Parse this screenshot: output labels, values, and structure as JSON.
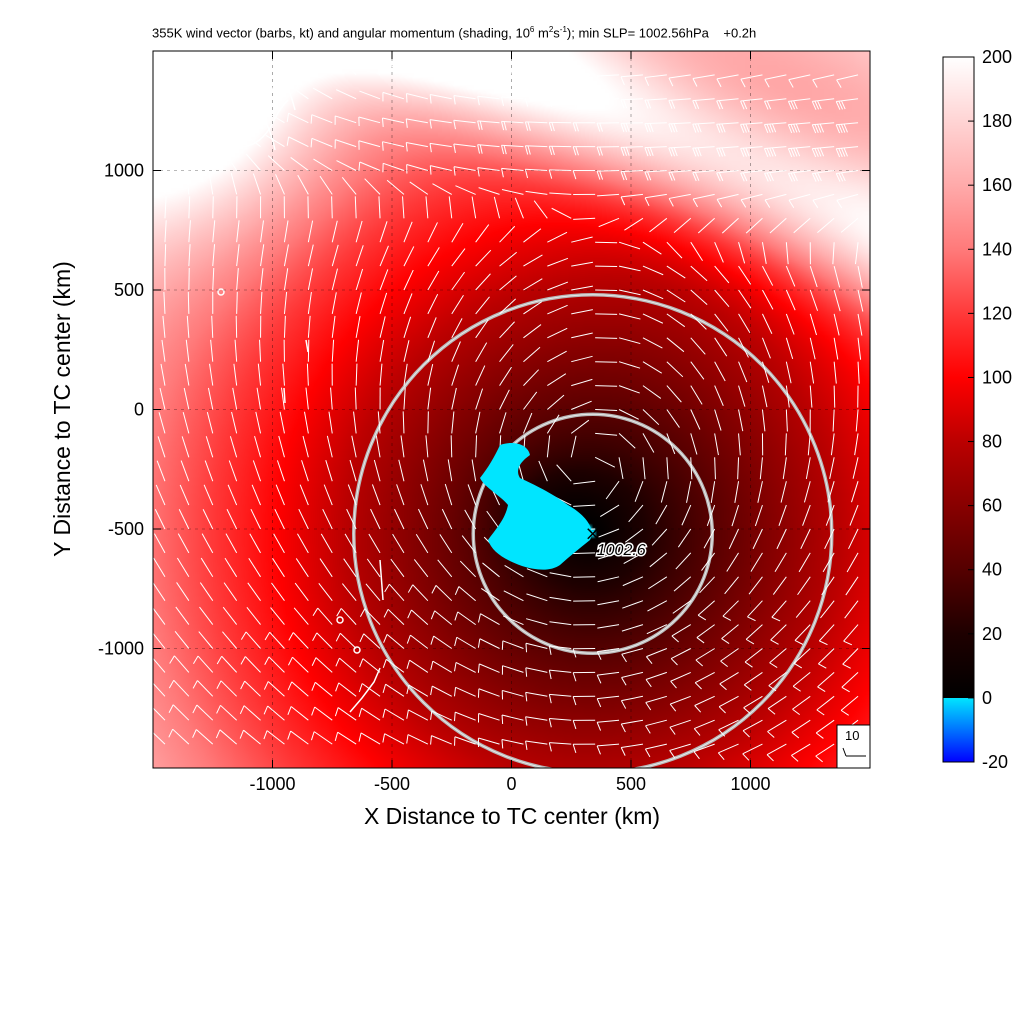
{
  "title": {
    "p1": "355K wind vector (barbs, kt) and angular momentum (shading, 10",
    "e1": "6",
    "p2": " m",
    "e2": "2",
    "p3": "s",
    "e3": "-1",
    "p4": "); min SLP= 1002.56hPa",
    "time": "+0.2h"
  },
  "chart_data": {
    "type": "heatmap",
    "xlabel": "X Distance to TC center (km)",
    "ylabel": "Y Distance to TC center (km)",
    "xlim": [
      -1500,
      1500
    ],
    "ylim": [
      -1500,
      1500
    ],
    "xticks": [
      -1000,
      -500,
      0,
      500,
      1000
    ],
    "yticks": [
      1000,
      500,
      0,
      -500,
      -1000
    ],
    "grid": "dashed",
    "colorbar": {
      "range": [
        -20,
        200
      ],
      "ticks": [
        200,
        180,
        160,
        140,
        120,
        100,
        80,
        60,
        40,
        20,
        0,
        -20
      ],
      "stops": [
        {
          "v": -20,
          "c": "#0000ff"
        },
        {
          "v": 0,
          "c": "#00e5ff"
        },
        {
          "v": 0.01,
          "c": "#000000"
        },
        {
          "v": 20,
          "c": "#1e0000"
        },
        {
          "v": 40,
          "c": "#550000"
        },
        {
          "v": 60,
          "c": "#880000"
        },
        {
          "v": 80,
          "c": "#bb0000"
        },
        {
          "v": 100,
          "c": "#ff0000"
        },
        {
          "v": 120,
          "c": "#ff3a3a"
        },
        {
          "v": 140,
          "c": "#ff7a7a"
        },
        {
          "v": 160,
          "c": "#ffaaaa"
        },
        {
          "v": 180,
          "c": "#ffd4d4"
        },
        {
          "v": 200,
          "c": "#ffffff"
        }
      ]
    },
    "min_slp_marker": {
      "x": 340,
      "y": -520,
      "label": "1002.6"
    },
    "range_circles_km": [
      500,
      1000
    ],
    "circle_center": {
      "x": 340,
      "y": -520
    },
    "barb_reference": {
      "label": "10"
    }
  }
}
